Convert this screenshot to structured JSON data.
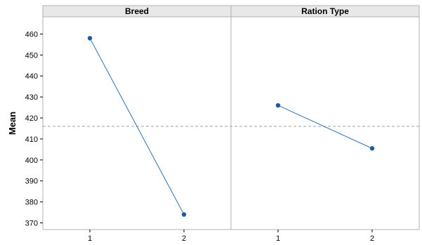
{
  "chart_data": {
    "type": "line",
    "ylabel": "Mean",
    "ylim": [
      368,
      465
    ],
    "yticks": [
      370,
      380,
      390,
      400,
      410,
      420,
      430,
      440,
      450,
      460
    ],
    "reference_line": 416,
    "grid": false,
    "colors": {
      "series": "#2f6fb3",
      "marker": "#1f5aa0",
      "reference": "#a0a0a0",
      "frame": "#b0b0b0",
      "strip": "#e8e8e8"
    },
    "panels": [
      {
        "title": "Breed",
        "categories": [
          "1",
          "2"
        ],
        "values": [
          458,
          374
        ]
      },
      {
        "title": "Ration Type",
        "categories": [
          "1",
          "2"
        ],
        "values": [
          426,
          405.5
        ]
      }
    ]
  }
}
